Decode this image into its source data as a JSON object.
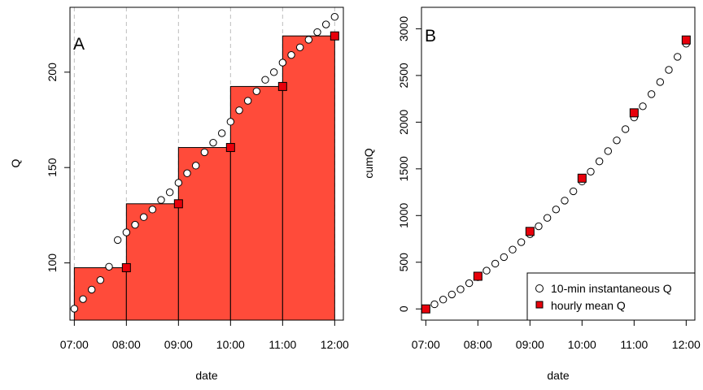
{
  "chart_data": [
    {
      "type": "step-area+scatter",
      "panel_label": "A",
      "xlabel": "date",
      "ylabel": "Q",
      "xlim": [
        "06:55",
        "12:10"
      ],
      "ylim": [
        70,
        234
      ],
      "x_ticks": [
        "07:00",
        "08:00",
        "09:00",
        "10:00",
        "11:00",
        "12:00"
      ],
      "y_ticks": [
        100,
        150,
        200
      ],
      "vertical_grid": [
        "07:00",
        "08:00",
        "09:00",
        "10:00",
        "11:00",
        "12:00"
      ],
      "fill_color": "#ff4b3a",
      "steps": [
        {
          "start": "07:00",
          "end": "08:00",
          "value": 97.5
        },
        {
          "start": "08:00",
          "end": "09:00",
          "value": 131
        },
        {
          "start": "09:00",
          "end": "10:00",
          "value": 160.5
        },
        {
          "start": "10:00",
          "end": "11:00",
          "value": 192.5
        },
        {
          "start": "11:00",
          "end": "12:00",
          "value": 219
        }
      ],
      "series": [
        {
          "name": "10-min instantaneous Q",
          "marker": "open-circle",
          "x": [
            "07:00",
            "07:10",
            "07:20",
            "07:30",
            "07:40",
            "07:50",
            "08:00",
            "08:10",
            "08:20",
            "08:30",
            "08:40",
            "08:50",
            "09:00",
            "09:10",
            "09:20",
            "09:30",
            "09:40",
            "09:50",
            "10:00",
            "10:10",
            "10:20",
            "10:30",
            "10:40",
            "10:50",
            "11:00",
            "11:10",
            "11:20",
            "11:30",
            "11:40",
            "11:50",
            "12:00"
          ],
          "y": [
            76,
            81,
            86,
            91,
            98,
            112,
            116,
            120,
            124,
            128,
            133,
            137,
            142,
            147,
            151,
            158,
            163,
            168,
            174,
            180,
            185,
            190,
            196,
            200,
            205,
            209,
            213,
            217,
            221,
            225,
            229
          ]
        },
        {
          "name": "hourly mean Q",
          "marker": "red-square",
          "x": [
            "08:00",
            "09:00",
            "10:00",
            "11:00",
            "12:00"
          ],
          "y": [
            97.5,
            131,
            160.5,
            192.5,
            219
          ]
        }
      ]
    },
    {
      "type": "scatter",
      "panel_label": "B",
      "xlabel": "date",
      "ylabel": "cumQ",
      "xlim": [
        "06:55",
        "12:10"
      ],
      "ylim": [
        -120,
        3230
      ],
      "x_ticks": [
        "07:00",
        "08:00",
        "09:00",
        "10:00",
        "11:00",
        "12:00"
      ],
      "y_ticks": [
        0,
        500,
        1000,
        1500,
        2000,
        2500,
        3000
      ],
      "legend_position": "bottom-right",
      "series": [
        {
          "name": "10-min instantaneous Q",
          "marker": "open-circle",
          "x": [
            "07:00",
            "07:10",
            "07:20",
            "07:30",
            "07:40",
            "07:50",
            "08:00",
            "08:10",
            "08:20",
            "08:30",
            "08:40",
            "08:50",
            "09:00",
            "09:10",
            "09:20",
            "09:30",
            "09:40",
            "09:50",
            "10:00",
            "10:10",
            "10:20",
            "10:30",
            "10:40",
            "10:50",
            "11:00",
            "11:10",
            "11:20",
            "11:30",
            "11:40",
            "11:50",
            "12:00"
          ],
          "y": [
            0,
            50,
            100,
            155,
            210,
            275,
            340,
            410,
            485,
            555,
            635,
            715,
            800,
            885,
            975,
            1065,
            1160,
            1260,
            1365,
            1470,
            1580,
            1690,
            1805,
            1925,
            2050,
            2170,
            2300,
            2430,
            2560,
            2700,
            2840
          ]
        },
        {
          "name": "hourly mean Q",
          "marker": "red-square",
          "x": [
            "07:00",
            "08:00",
            "09:00",
            "10:00",
            "11:00",
            "12:00"
          ],
          "y": [
            0,
            350,
            830,
            1400,
            2100,
            2880
          ]
        }
      ]
    }
  ]
}
